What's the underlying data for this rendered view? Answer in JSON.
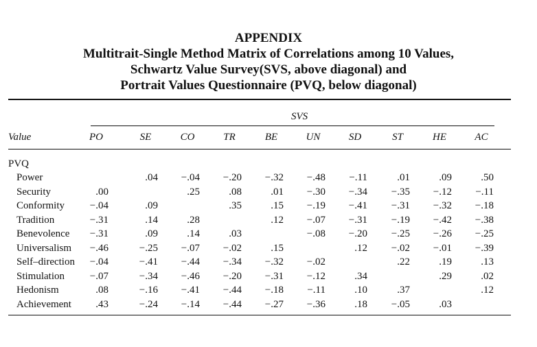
{
  "appendix": {
    "title_lines": [
      "APPENDIX",
      "Multitrait-Single Method Matrix of Correlations among 10 Values,",
      "Schwartz Value Survey(SVS, above diagonal) and",
      "Portrait Values Questionnaire (PVQ, below diagonal)"
    ]
  },
  "table": {
    "group_header": "SVS",
    "value_header": "Value",
    "row_group_label": "PVQ",
    "columns": [
      "PO",
      "SE",
      "CO",
      "TR",
      "BE",
      "UN",
      "SD",
      "ST",
      "HE",
      "AC"
    ],
    "rows": [
      {
        "label": "Power",
        "cells": [
          "",
          ".04",
          "−.04",
          "−.20",
          "−.32",
          "−.48",
          "−.11",
          ".01",
          ".09",
          ".50"
        ]
      },
      {
        "label": "Security",
        "cells": [
          ".00",
          "",
          ".25",
          ".08",
          ".01",
          "−.30",
          "−.34",
          "−.35",
          "−.12",
          "−.11"
        ]
      },
      {
        "label": "Conformity",
        "cells": [
          "−.04",
          ".09",
          "",
          ".35",
          ".15",
          "−.19",
          "−.41",
          "−.31",
          "−.32",
          "−.18"
        ]
      },
      {
        "label": "Tradition",
        "cells": [
          "−.31",
          ".14",
          ".28",
          "",
          ".12",
          "−.07",
          "−.31",
          "−.19",
          "−.42",
          "−.38"
        ]
      },
      {
        "label": "Benevolence",
        "cells": [
          "−.31",
          ".09",
          ".14",
          ".03",
          "",
          "−.08",
          "−.20",
          "−.25",
          "−.26",
          "−.25"
        ]
      },
      {
        "label": "Universalism",
        "cells": [
          "−.46",
          "−.25",
          "−.07",
          "−.02",
          ".15",
          "",
          ".12",
          "−.02",
          "−.01",
          "−.39"
        ]
      },
      {
        "label": "Self–direction",
        "cells": [
          "−.04",
          "−.41",
          "−.44",
          "−.34",
          "−.32",
          "−.02",
          "",
          ".22",
          ".19",
          ".13"
        ]
      },
      {
        "label": "Stimulation",
        "cells": [
          "−.07",
          "−.34",
          "−.46",
          "−.20",
          "−.31",
          "−.12",
          ".34",
          "",
          ".29",
          ".02"
        ]
      },
      {
        "label": "Hedonism",
        "cells": [
          ".08",
          "−.16",
          "−.41",
          "−.44",
          "−.18",
          "−.11",
          ".10",
          ".37",
          "",
          ".12"
        ]
      },
      {
        "label": "Achievement",
        "cells": [
          ".43",
          "−.24",
          "−.14",
          "−.44",
          "−.27",
          "−.36",
          ".18",
          "−.05",
          ".03",
          ""
        ]
      }
    ]
  }
}
